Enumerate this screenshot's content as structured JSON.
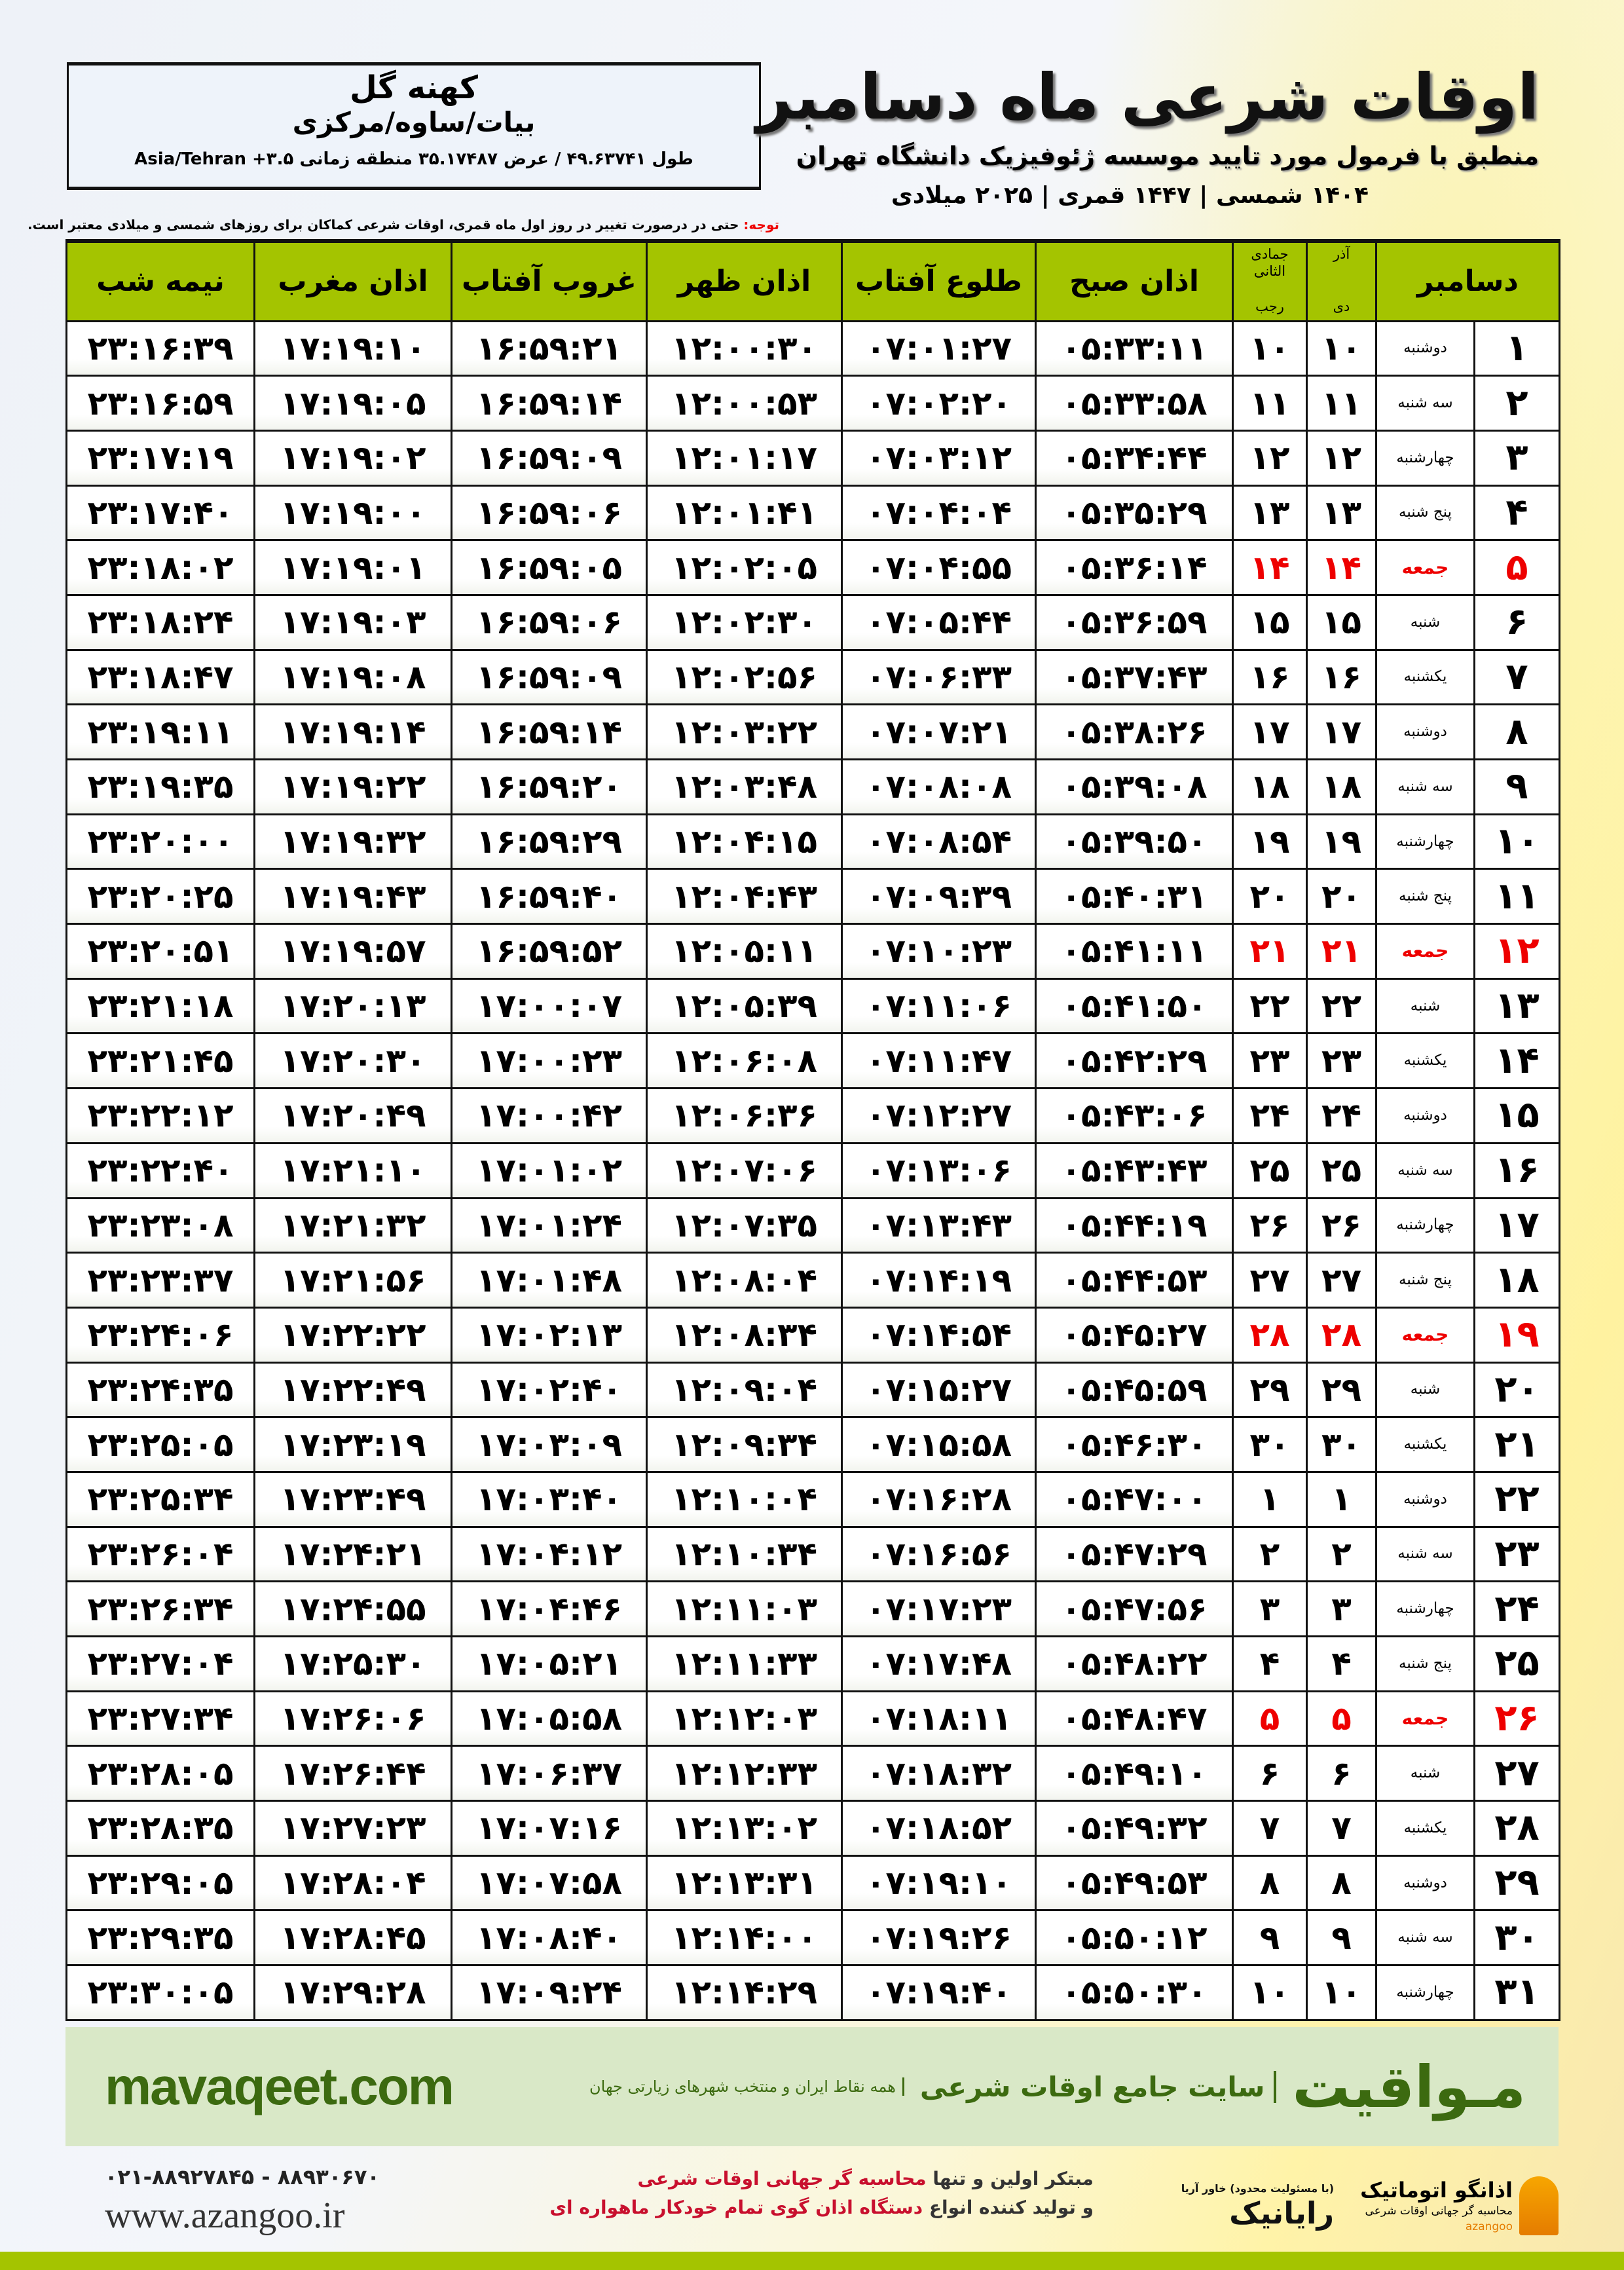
{
  "header": {
    "title": "اوقات شرعی ماه دسامبر",
    "subtitle": "منطبق با فرمول مورد تایید موسسه ژئوفیزیک دانشگاه تهران",
    "years": "۱۴۰۴ شمسی | ۱۴۴۷ قمری | ۲۰۲۵ میلادی"
  },
  "location": {
    "city": "کهنه گل",
    "province": "بیات/ساوه/مرکزی",
    "coords": "طول ۴۹.۶۳۷۴۱ / عرض ۳۵.۱۷۴۸۷ منطقه زمانی ۳.۵+ Asia/Tehran"
  },
  "note": {
    "label": "توجه:",
    "text": " حتی در درصورت تغییر در روز اول ماه قمری، اوقات شرعی کماکان برای روزهای شمسی و میلادی معتبر است."
  },
  "columns": {
    "day": "دسامبر",
    "persian_top": "آذر",
    "persian_bottom": "دی",
    "hijri_top": "جمادی الثانی",
    "hijri_bottom": "رجب",
    "sobh": "اذان صبح",
    "tolu": "طلوع آفتاب",
    "zohr": "اذان ظهر",
    "ghorub": "غروب آفتاب",
    "maghrib": "اذان مغرب",
    "nime": "نیمه شب"
  },
  "colors": {
    "header_green": "#a4c400",
    "friday_red": "#e00000",
    "banner_bg": "#d9e8c7",
    "brand_green": "#3c6a10"
  },
  "rows": [
    [
      "۱",
      "دوشنبه",
      "۱۰",
      "۱۰",
      "۰۵:۳۳:۱۱",
      "۰۷:۰۱:۲۷",
      "۱۲:۰۰:۳۰",
      "۱۶:۵۹:۲۱",
      "۱۷:۱۹:۱۰",
      "۲۳:۱۶:۳۹"
    ],
    [
      "۲",
      "سه شنبه",
      "۱۱",
      "۱۱",
      "۰۵:۳۳:۵۸",
      "۰۷:۰۲:۲۰",
      "۱۲:۰۰:۵۳",
      "۱۶:۵۹:۱۴",
      "۱۷:۱۹:۰۵",
      "۲۳:۱۶:۵۹"
    ],
    [
      "۳",
      "چهارشنبه",
      "۱۲",
      "۱۲",
      "۰۵:۳۴:۴۴",
      "۰۷:۰۳:۱۲",
      "۱۲:۰۱:۱۷",
      "۱۶:۵۹:۰۹",
      "۱۷:۱۹:۰۲",
      "۲۳:۱۷:۱۹"
    ],
    [
      "۴",
      "پنج شنبه",
      "۱۳",
      "۱۳",
      "۰۵:۳۵:۲۹",
      "۰۷:۰۴:۰۴",
      "۱۲:۰۱:۴۱",
      "۱۶:۵۹:۰۶",
      "۱۷:۱۹:۰۰",
      "۲۳:۱۷:۴۰"
    ],
    [
      "۵",
      "جمعه",
      "۱۴",
      "۱۴",
      "۰۵:۳۶:۱۴",
      "۰۷:۰۴:۵۵",
      "۱۲:۰۲:۰۵",
      "۱۶:۵۹:۰۵",
      "۱۷:۱۹:۰۱",
      "۲۳:۱۸:۰۲"
    ],
    [
      "۶",
      "شنبه",
      "۱۵",
      "۱۵",
      "۰۵:۳۶:۵۹",
      "۰۷:۰۵:۴۴",
      "۱۲:۰۲:۳۰",
      "۱۶:۵۹:۰۶",
      "۱۷:۱۹:۰۳",
      "۲۳:۱۸:۲۴"
    ],
    [
      "۷",
      "یکشنبه",
      "۱۶",
      "۱۶",
      "۰۵:۳۷:۴۳",
      "۰۷:۰۶:۳۳",
      "۱۲:۰۲:۵۶",
      "۱۶:۵۹:۰۹",
      "۱۷:۱۹:۰۸",
      "۲۳:۱۸:۴۷"
    ],
    [
      "۸",
      "دوشنبه",
      "۱۷",
      "۱۷",
      "۰۵:۳۸:۲۶",
      "۰۷:۰۷:۲۱",
      "۱۲:۰۳:۲۲",
      "۱۶:۵۹:۱۴",
      "۱۷:۱۹:۱۴",
      "۲۳:۱۹:۱۱"
    ],
    [
      "۹",
      "سه شنبه",
      "۱۸",
      "۱۸",
      "۰۵:۳۹:۰۸",
      "۰۷:۰۸:۰۸",
      "۱۲:۰۳:۴۸",
      "۱۶:۵۹:۲۰",
      "۱۷:۱۹:۲۲",
      "۲۳:۱۹:۳۵"
    ],
    [
      "۱۰",
      "چهارشنبه",
      "۱۹",
      "۱۹",
      "۰۵:۳۹:۵۰",
      "۰۷:۰۸:۵۴",
      "۱۲:۰۴:۱۵",
      "۱۶:۵۹:۲۹",
      "۱۷:۱۹:۳۲",
      "۲۳:۲۰:۰۰"
    ],
    [
      "۱۱",
      "پنج شنبه",
      "۲۰",
      "۲۰",
      "۰۵:۴۰:۳۱",
      "۰۷:۰۹:۳۹",
      "۱۲:۰۴:۴۳",
      "۱۶:۵۹:۴۰",
      "۱۷:۱۹:۴۳",
      "۲۳:۲۰:۲۵"
    ],
    [
      "۱۲",
      "جمعه",
      "۲۱",
      "۲۱",
      "۰۵:۴۱:۱۱",
      "۰۷:۱۰:۲۳",
      "۱۲:۰۵:۱۱",
      "۱۶:۵۹:۵۲",
      "۱۷:۱۹:۵۷",
      "۲۳:۲۰:۵۱"
    ],
    [
      "۱۳",
      "شنبه",
      "۲۲",
      "۲۲",
      "۰۵:۴۱:۵۰",
      "۰۷:۱۱:۰۶",
      "۱۲:۰۵:۳۹",
      "۱۷:۰۰:۰۷",
      "۱۷:۲۰:۱۳",
      "۲۳:۲۱:۱۸"
    ],
    [
      "۱۴",
      "یکشنبه",
      "۲۳",
      "۲۳",
      "۰۵:۴۲:۲۹",
      "۰۷:۱۱:۴۷",
      "۱۲:۰۶:۰۸",
      "۱۷:۰۰:۲۳",
      "۱۷:۲۰:۳۰",
      "۲۳:۲۱:۴۵"
    ],
    [
      "۱۵",
      "دوشنبه",
      "۲۴",
      "۲۴",
      "۰۵:۴۳:۰۶",
      "۰۷:۱۲:۲۷",
      "۱۲:۰۶:۳۶",
      "۱۷:۰۰:۴۲",
      "۱۷:۲۰:۴۹",
      "۲۳:۲۲:۱۲"
    ],
    [
      "۱۶",
      "سه شنبه",
      "۲۵",
      "۲۵",
      "۰۵:۴۳:۴۳",
      "۰۷:۱۳:۰۶",
      "۱۲:۰۷:۰۶",
      "۱۷:۰۱:۰۲",
      "۱۷:۲۱:۱۰",
      "۲۳:۲۲:۴۰"
    ],
    [
      "۱۷",
      "چهارشنبه",
      "۲۶",
      "۲۶",
      "۰۵:۴۴:۱۹",
      "۰۷:۱۳:۴۳",
      "۱۲:۰۷:۳۵",
      "۱۷:۰۱:۲۴",
      "۱۷:۲۱:۳۲",
      "۲۳:۲۳:۰۸"
    ],
    [
      "۱۸",
      "پنج شنبه",
      "۲۷",
      "۲۷",
      "۰۵:۴۴:۵۳",
      "۰۷:۱۴:۱۹",
      "۱۲:۰۸:۰۴",
      "۱۷:۰۱:۴۸",
      "۱۷:۲۱:۵۶",
      "۲۳:۲۳:۳۷"
    ],
    [
      "۱۹",
      "جمعه",
      "۲۸",
      "۲۸",
      "۰۵:۴۵:۲۷",
      "۰۷:۱۴:۵۴",
      "۱۲:۰۸:۳۴",
      "۱۷:۰۲:۱۳",
      "۱۷:۲۲:۲۲",
      "۲۳:۲۴:۰۶"
    ],
    [
      "۲۰",
      "شنبه",
      "۲۹",
      "۲۹",
      "۰۵:۴۵:۵۹",
      "۰۷:۱۵:۲۷",
      "۱۲:۰۹:۰۴",
      "۱۷:۰۲:۴۰",
      "۱۷:۲۲:۴۹",
      "۲۳:۲۴:۳۵"
    ],
    [
      "۲۱",
      "یکشنبه",
      "۳۰",
      "۳۰",
      "۰۵:۴۶:۳۰",
      "۰۷:۱۵:۵۸",
      "۱۲:۰۹:۳۴",
      "۱۷:۰۳:۰۹",
      "۱۷:۲۳:۱۹",
      "۲۳:۲۵:۰۵"
    ],
    [
      "۲۲",
      "دوشنبه",
      "۱",
      "۱",
      "۰۵:۴۷:۰۰",
      "۰۷:۱۶:۲۸",
      "۱۲:۱۰:۰۴",
      "۱۷:۰۳:۴۰",
      "۱۷:۲۳:۴۹",
      "۲۳:۲۵:۳۴"
    ],
    [
      "۲۳",
      "سه شنبه",
      "۲",
      "۲",
      "۰۵:۴۷:۲۹",
      "۰۷:۱۶:۵۶",
      "۱۲:۱۰:۳۴",
      "۱۷:۰۴:۱۲",
      "۱۷:۲۴:۲۱",
      "۲۳:۲۶:۰۴"
    ],
    [
      "۲۴",
      "چهارشنبه",
      "۳",
      "۳",
      "۰۵:۴۷:۵۶",
      "۰۷:۱۷:۲۳",
      "۱۲:۱۱:۰۳",
      "۱۷:۰۴:۴۶",
      "۱۷:۲۴:۵۵",
      "۲۳:۲۶:۳۴"
    ],
    [
      "۲۵",
      "پنج شنبه",
      "۴",
      "۴",
      "۰۵:۴۸:۲۲",
      "۰۷:۱۷:۴۸",
      "۱۲:۱۱:۳۳",
      "۱۷:۰۵:۲۱",
      "۱۷:۲۵:۳۰",
      "۲۳:۲۷:۰۴"
    ],
    [
      "۲۶",
      "جمعه",
      "۵",
      "۵",
      "۰۵:۴۸:۴۷",
      "۰۷:۱۸:۱۱",
      "۱۲:۱۲:۰۳",
      "۱۷:۰۵:۵۸",
      "۱۷:۲۶:۰۶",
      "۲۳:۲۷:۳۴"
    ],
    [
      "۲۷",
      "شنبه",
      "۶",
      "۶",
      "۰۵:۴۹:۱۰",
      "۰۷:۱۸:۳۲",
      "۱۲:۱۲:۳۳",
      "۱۷:۰۶:۳۷",
      "۱۷:۲۶:۴۴",
      "۲۳:۲۸:۰۵"
    ],
    [
      "۲۸",
      "یکشنبه",
      "۷",
      "۷",
      "۰۵:۴۹:۳۲",
      "۰۷:۱۸:۵۲",
      "۱۲:۱۳:۰۲",
      "۱۷:۰۷:۱۶",
      "۱۷:۲۷:۲۳",
      "۲۳:۲۸:۳۵"
    ],
    [
      "۲۹",
      "دوشنبه",
      "۸",
      "۸",
      "۰۵:۴۹:۵۳",
      "۰۷:۱۹:۱۰",
      "۱۲:۱۳:۳۱",
      "۱۷:۰۷:۵۸",
      "۱۷:۲۸:۰۴",
      "۲۳:۲۹:۰۵"
    ],
    [
      "۳۰",
      "سه شنبه",
      "۹",
      "۹",
      "۰۵:۵۰:۱۲",
      "۰۷:۱۹:۲۶",
      "۱۲:۱۴:۰۰",
      "۱۷:۰۸:۴۰",
      "۱۷:۲۸:۴۵",
      "۲۳:۲۹:۳۵"
    ],
    [
      "۳۱",
      "چهارشنبه",
      "۱۰",
      "۱۰",
      "۰۵:۵۰:۳۰",
      "۰۷:۱۹:۴۰",
      "۱۲:۱۴:۲۹",
      "۱۷:۰۹:۲۴",
      "۱۷:۲۹:۲۸",
      "۲۳:۳۰:۰۵"
    ]
  ],
  "banner": {
    "site": "mavaqeet.com",
    "brand": "مـواقیت",
    "slogan": "سایت جامع اوقات شرعی",
    "slogan2": "همه نقاط ایران و منتخب شهرهای زیارتی جهان"
  },
  "footer": {
    "phone": "۰۲۱-۸۸۹۲۷۸۴۵ - ۸۸۹۳۰۶۷۰",
    "web": "www.azangoo.ir",
    "ad_line1_a": "مبتکر اولین و تنها ",
    "ad_line1_b": "محاسبه گر جهانی اوقات شرعی",
    "ad_line2_a": "و تولید کننده انواع ",
    "ad_line2_b": "دستگاه اذان گوی تمام خودکار ماهواره ای",
    "logo_rayanik": "رایانیک",
    "logo_rayanik_small": "(با مسئولیت محدود) خاور آریا",
    "logo_azangoo": "اذانگو اتوماتیک",
    "logo_azangoo_sub": "محاسبه گر جهانی اوقات شرعی",
    "logo_azangoo_en": "azangoo"
  }
}
